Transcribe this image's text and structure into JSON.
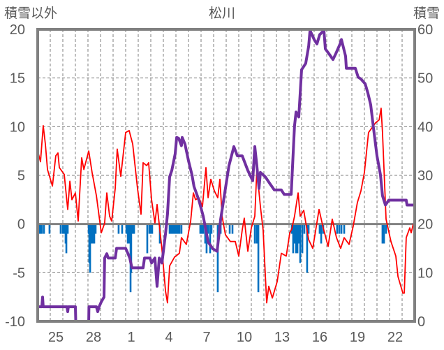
{
  "chart_data": {
    "type": "line",
    "title": "松川",
    "ylabel_left": "積雪以外",
    "ylabel_right": "積雪",
    "ylim_left": [
      -10,
      20
    ],
    "ylim_right": [
      0,
      60
    ],
    "yticks_left": [
      "20",
      "15",
      "10",
      "5",
      "0",
      "-5",
      "-10"
    ],
    "yticks_right": [
      "60",
      "50",
      "40",
      "30",
      "20",
      "10",
      "0"
    ],
    "yticks_left_values": [
      20,
      15,
      10,
      5,
      0,
      -5,
      -10
    ],
    "yticks_right_values": [
      60,
      50,
      40,
      30,
      20,
      10,
      0
    ],
    "xlim_days": [
      0,
      30
    ],
    "xticks": [
      {
        "day": 1.5,
        "label": "25"
      },
      {
        "day": 4.5,
        "label": "28"
      },
      {
        "day": 7.5,
        "label": "1"
      },
      {
        "day": 10.5,
        "label": "4"
      },
      {
        "day": 13.5,
        "label": "7"
      },
      {
        "day": 16.5,
        "label": "10"
      },
      {
        "day": 19.5,
        "label": "13"
      },
      {
        "day": 22.5,
        "label": "16"
      },
      {
        "day": 25.5,
        "label": "19"
      },
      {
        "day": 28.5,
        "label": "22"
      }
    ],
    "grid": true,
    "colors": {
      "red": "#ff0000",
      "purple": "#7030a0",
      "blue": "#0070c0",
      "axis": "#808080",
      "grid": "#7f7f7f",
      "text": "#595959"
    },
    "series": [
      {
        "name": "積雪以外 (line)",
        "axis": "left",
        "color": "#ff0000",
        "points": [
          [
            0,
            7.5
          ],
          [
            0.22,
            6.4
          ],
          [
            0.44,
            10.1
          ],
          [
            0.61,
            8.2
          ],
          [
            0.78,
            5.6
          ],
          [
            1.17,
            3.9
          ],
          [
            1.44,
            7
          ],
          [
            1.61,
            7.3
          ],
          [
            1.72,
            5.8
          ],
          [
            2.11,
            5.1
          ],
          [
            2.39,
            1.5
          ],
          [
            2.56,
            4.4
          ],
          [
            2.72,
            2.5
          ],
          [
            3.0,
            3.2
          ],
          [
            3.22,
            0.3
          ],
          [
            3.5,
            6.8
          ],
          [
            3.67,
            5.6
          ],
          [
            4.06,
            7.5
          ],
          [
            4.33,
            5.3
          ],
          [
            4.67,
            2.9
          ],
          [
            5.06,
            -0.9
          ],
          [
            5.33,
            0.1
          ],
          [
            5.5,
            3.2
          ],
          [
            5.72,
            0.8
          ],
          [
            5.89,
            0.3
          ],
          [
            6.17,
            3.7
          ],
          [
            6.33,
            7.7
          ],
          [
            6.61,
            4.9
          ],
          [
            7.0,
            9.4
          ],
          [
            7.28,
            9.6
          ],
          [
            7.56,
            8.2
          ],
          [
            7.94,
            3.7
          ],
          [
            8.22,
            1.0
          ],
          [
            8.39,
            6.3
          ],
          [
            8.67,
            6.0
          ],
          [
            8.83,
            6.3
          ],
          [
            9.06,
            2.5
          ],
          [
            9.33,
            0.1
          ],
          [
            9.5,
            2.0
          ],
          [
            9.89,
            -2.6
          ],
          [
            10.17,
            -6.9
          ],
          [
            10.33,
            -8.1
          ],
          [
            10.5,
            -4.3
          ],
          [
            10.89,
            -3.4
          ],
          [
            11.28,
            -3
          ],
          [
            11.44,
            -1.4
          ],
          [
            11.83,
            -2.1
          ],
          [
            12.17,
            0.3
          ],
          [
            12.39,
            3.2
          ],
          [
            12.56,
            2.5
          ],
          [
            12.83,
            2.7
          ],
          [
            13.11,
            1.8
          ],
          [
            13.39,
            5.8
          ],
          [
            13.56,
            2.7
          ],
          [
            13.78,
            4.6
          ],
          [
            14.06,
            3.4
          ],
          [
            14.33,
            2.7
          ],
          [
            14.5,
            4.6
          ],
          [
            14.67,
            0.8
          ],
          [
            14.94,
            -1.1
          ],
          [
            15.33,
            -1.8
          ],
          [
            15.72,
            -1.8
          ],
          [
            16.0,
            -3.3
          ],
          [
            16.28,
            -0.6
          ],
          [
            16.44,
            0.6
          ],
          [
            16.72,
            -2.8
          ],
          [
            17.0,
            -0.4
          ],
          [
            17.28,
            0.8
          ],
          [
            17.44,
            5.6
          ],
          [
            17.72,
            1.8
          ],
          [
            17.94,
            -0.6
          ],
          [
            18.22,
            -8.1
          ],
          [
            18.39,
            -6.4
          ],
          [
            18.67,
            -7.6
          ],
          [
            19.06,
            -5.9
          ],
          [
            19.39,
            -3
          ],
          [
            19.78,
            -3.3
          ],
          [
            20.06,
            -0.9
          ],
          [
            20.22,
            -0.5
          ],
          [
            20.44,
            0.8
          ],
          [
            20.72,
            3.2
          ],
          [
            20.89,
            0.8
          ],
          [
            21.17,
            1.4
          ],
          [
            21.56,
            -1.6
          ],
          [
            21.89,
            -2.5
          ],
          [
            22.39,
            1.5
          ],
          [
            22.72,
            -0.4
          ],
          [
            23.11,
            -2.3
          ],
          [
            23.44,
            0.5
          ],
          [
            23.78,
            -1.4
          ],
          [
            24.11,
            -2.5
          ],
          [
            24.39,
            -1.4
          ],
          [
            24.78,
            -2.1
          ],
          [
            25.11,
            -0.2
          ],
          [
            25.44,
            2.2
          ],
          [
            25.72,
            3.4
          ],
          [
            26.0,
            5.3
          ],
          [
            26.33,
            9.4
          ],
          [
            26.61,
            9.9
          ],
          [
            26.89,
            10.4
          ],
          [
            27.17,
            10.7
          ],
          [
            27.33,
            11.9
          ],
          [
            27.44,
            9.4
          ],
          [
            27.72,
            0.5
          ],
          [
            28.11,
            -1.8
          ],
          [
            28.5,
            -3.3
          ],
          [
            28.67,
            -5.4
          ],
          [
            29.06,
            -7.1
          ],
          [
            29.17,
            -7.1
          ],
          [
            29.33,
            -1.4
          ],
          [
            29.61,
            -0.4
          ],
          [
            29.72,
            -0.9
          ],
          [
            29.89,
            0
          ]
        ]
      },
      {
        "name": "積雪",
        "axis": "right",
        "color": "#7030a0",
        "points": [
          [
            0,
            3
          ],
          [
            0.33,
            3
          ],
          [
            0.39,
            5
          ],
          [
            0.44,
            3
          ],
          [
            2.33,
            3
          ],
          [
            2.39,
            2
          ],
          [
            2.44,
            3
          ],
          [
            3.0,
            3
          ],
          [
            3.03,
            0
          ],
          [
            4.06,
            0
          ],
          [
            4.08,
            3
          ],
          [
            4.67,
            3
          ],
          [
            4.78,
            2
          ],
          [
            4.89,
            3
          ],
          [
            5.06,
            4
          ],
          [
            5.28,
            5
          ],
          [
            5.33,
            13
          ],
          [
            5.5,
            13.9
          ],
          [
            5.61,
            13
          ],
          [
            6.17,
            13
          ],
          [
            6.28,
            15
          ],
          [
            7.0,
            15
          ],
          [
            7.17,
            14
          ],
          [
            7.33,
            13
          ],
          [
            7.5,
            11
          ],
          [
            8.39,
            11
          ],
          [
            8.5,
            13
          ],
          [
            8.94,
            13
          ],
          [
            9.06,
            12
          ],
          [
            9.33,
            13
          ],
          [
            9.5,
            7.2
          ],
          [
            9.67,
            13
          ],
          [
            9.89,
            12
          ],
          [
            10.17,
            18
          ],
          [
            10.33,
            22
          ],
          [
            10.5,
            29.7
          ],
          [
            10.67,
            31
          ],
          [
            10.94,
            34.4
          ],
          [
            11.06,
            37.8
          ],
          [
            11.22,
            37.6
          ],
          [
            11.44,
            36.1
          ],
          [
            11.5,
            37.8
          ],
          [
            11.72,
            36.4
          ],
          [
            12.0,
            33
          ],
          [
            12.28,
            30.1
          ],
          [
            12.44,
            27.7
          ],
          [
            12.83,
            24.9
          ],
          [
            13.17,
            21.6
          ],
          [
            13.56,
            16.3
          ],
          [
            13.94,
            14.9
          ],
          [
            14.28,
            14.4
          ],
          [
            14.56,
            21
          ],
          [
            14.94,
            27.3
          ],
          [
            15.22,
            32
          ],
          [
            15.61,
            35.9
          ],
          [
            15.89,
            34
          ],
          [
            16.28,
            34
          ],
          [
            16.72,
            31
          ],
          [
            17.11,
            28.9
          ],
          [
            17.28,
            35.9
          ],
          [
            17.44,
            32
          ],
          [
            17.61,
            27.3
          ],
          [
            17.72,
            30.6
          ],
          [
            18.11,
            29.7
          ],
          [
            18.5,
            28.2
          ],
          [
            18.83,
            27
          ],
          [
            19.39,
            27
          ],
          [
            19.61,
            26.1
          ],
          [
            20.17,
            26.1
          ],
          [
            20.33,
            34.4
          ],
          [
            20.44,
            40.2
          ],
          [
            20.56,
            43
          ],
          [
            20.78,
            42
          ],
          [
            21.0,
            51.7
          ],
          [
            21.33,
            53
          ],
          [
            21.56,
            56.5
          ],
          [
            21.67,
            59.8
          ],
          [
            22.0,
            57.9
          ],
          [
            22.22,
            57
          ],
          [
            22.44,
            58.9
          ],
          [
            22.78,
            59.8
          ],
          [
            22.89,
            56
          ],
          [
            23.17,
            55
          ],
          [
            23.5,
            53.8
          ],
          [
            23.72,
            55
          ],
          [
            24.06,
            57
          ],
          [
            24.17,
            57.9
          ],
          [
            24.5,
            54.5
          ],
          [
            24.56,
            52
          ],
          [
            25.28,
            52
          ],
          [
            25.5,
            50.2
          ],
          [
            25.72,
            49.8
          ],
          [
            26.06,
            48.8
          ],
          [
            26.28,
            46.9
          ],
          [
            26.5,
            44.5
          ],
          [
            26.72,
            39.7
          ],
          [
            27.0,
            34
          ],
          [
            27.28,
            30.1
          ],
          [
            27.44,
            25.8
          ],
          [
            27.67,
            23.9
          ],
          [
            27.94,
            24.9
          ],
          [
            29.33,
            24.9
          ],
          [
            29.39,
            23.9
          ],
          [
            30,
            23.9
          ]
        ]
      },
      {
        "name": "積雪以外 (bars)",
        "axis": "left",
        "type": "bar",
        "color": "#0070c0",
        "points": [
          [
            0.11,
            -1
          ],
          [
            0.22,
            -1
          ],
          [
            0.33,
            -1
          ],
          [
            0.5,
            -1
          ],
          [
            0.94,
            -1
          ],
          [
            1.83,
            -1
          ],
          [
            2.0,
            -1
          ],
          [
            2.11,
            -1
          ],
          [
            2.22,
            -2
          ],
          [
            2.28,
            -3
          ],
          [
            2.39,
            -1
          ],
          [
            4.06,
            -1
          ],
          [
            4.11,
            -4
          ],
          [
            4.17,
            -5
          ],
          [
            4.28,
            -2
          ],
          [
            4.39,
            -2
          ],
          [
            4.5,
            -2
          ],
          [
            4.61,
            -1
          ],
          [
            6.44,
            -1
          ],
          [
            6.72,
            -1
          ],
          [
            7.06,
            -1
          ],
          [
            7.17,
            -2
          ],
          [
            7.28,
            -2
          ],
          [
            7.39,
            -7
          ],
          [
            7.44,
            -5
          ],
          [
            7.56,
            -1
          ],
          [
            7.67,
            -1
          ],
          [
            8.72,
            -3
          ],
          [
            8.89,
            -1
          ],
          [
            9.0,
            -1
          ],
          [
            9.11,
            -1
          ],
          [
            9.72,
            -2
          ],
          [
            10.5,
            -1
          ],
          [
            10.61,
            -1
          ],
          [
            10.72,
            -1
          ],
          [
            10.83,
            -1
          ],
          [
            10.94,
            -1
          ],
          [
            11.06,
            -1
          ],
          [
            11.17,
            -1
          ],
          [
            11.28,
            -1
          ],
          [
            11.44,
            -1
          ],
          [
            12.94,
            -1
          ],
          [
            13.06,
            -1
          ],
          [
            13.17,
            -1
          ],
          [
            13.33,
            -2
          ],
          [
            13.44,
            -3
          ],
          [
            13.56,
            -1
          ],
          [
            13.72,
            -3
          ],
          [
            13.83,
            -1
          ],
          [
            14.33,
            -7
          ],
          [
            14.44,
            -1
          ],
          [
            14.56,
            -1
          ],
          [
            15.28,
            -1
          ],
          [
            15.5,
            -1
          ],
          [
            17.28,
            -2
          ],
          [
            17.44,
            -2
          ],
          [
            17.56,
            -7
          ],
          [
            20.22,
            -1
          ],
          [
            20.33,
            -3
          ],
          [
            20.44,
            -2
          ],
          [
            20.56,
            -3
          ],
          [
            20.67,
            -3
          ],
          [
            20.78,
            -2
          ],
          [
            20.89,
            -4
          ],
          [
            21.06,
            -3
          ],
          [
            21.22,
            -1
          ],
          [
            21.44,
            -5
          ],
          [
            21.56,
            -1
          ],
          [
            22.44,
            -1
          ],
          [
            22.56,
            -2
          ],
          [
            22.72,
            -1
          ],
          [
            23.83,
            -1
          ],
          [
            24.0,
            -1
          ],
          [
            24.17,
            -1
          ],
          [
            24.39,
            -1
          ],
          [
            27.44,
            -2
          ],
          [
            27.56,
            -2
          ],
          [
            27.72,
            -1
          ]
        ]
      }
    ]
  }
}
